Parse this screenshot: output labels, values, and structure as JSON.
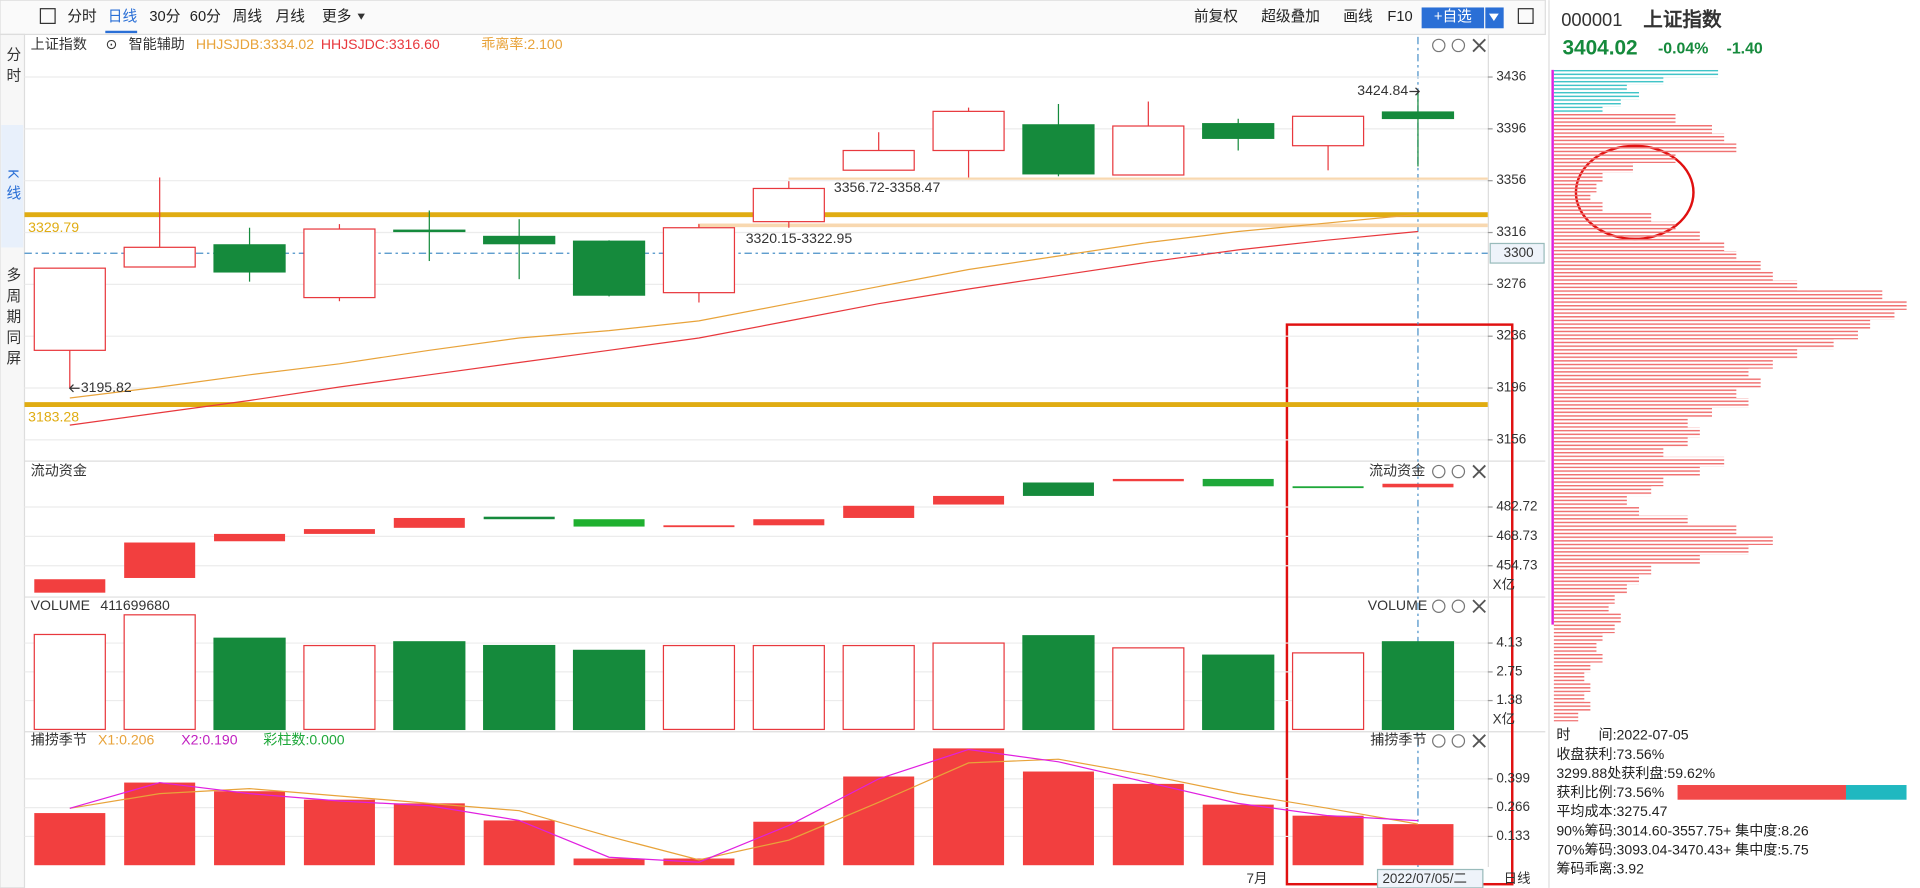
{
  "toolbar": {
    "left": [
      "分时",
      "日线",
      "30分",
      "60分",
      "周线",
      "月线",
      "更多"
    ],
    "right": [
      "前复权",
      "超级叠加",
      "画线",
      "F10",
      "+自选"
    ]
  },
  "sidebar": [
    "分时",
    "K线",
    "多周期同屏"
  ],
  "quote": {
    "code": "000001",
    "name": "上证指数",
    "price": 3404.02,
    "change_pct": "-0.04%",
    "change": "-1.40"
  },
  "chart_data": [
    {
      "type": "candlestick",
      "title": "上证指数",
      "assist": "智能辅助",
      "indicators": [
        "HHJSJDB:3334.02",
        "HHJSJDC:3316.60",
        "乖离率:2.100"
      ],
      "open": [
        3225.1,
        3289.4,
        3306.5,
        3265.8,
        3317.8,
        3313.0,
        3309.3,
        3269.6,
        3324.4,
        3364.1,
        3379.3,
        3399.1,
        3360.4,
        3400.0,
        3383.0,
        3409.0
      ],
      "high": [
        3288.5,
        3358.5,
        3319.7,
        3322.5,
        3333.0,
        3326.3,
        3310.0,
        3322.5,
        3355.6,
        3393.4,
        3412.4,
        3415.2,
        3417.1,
        3403.8,
        3405.7,
        3424.84
      ],
      "low": [
        3195.82,
        3289.4,
        3278.1,
        3263.0,
        3294.0,
        3280.0,
        3266.7,
        3262.0,
        3319.7,
        3364.1,
        3358.5,
        3359.4,
        3360.4,
        3379.3,
        3364.0,
        3367.0
      ],
      "close": [
        3288.5,
        3304.6,
        3285.6,
        3318.7,
        3316.8,
        3307.4,
        3267.7,
        3319.7,
        3350.0,
        3379.3,
        3409.5,
        3361.3,
        3398.2,
        3388.7,
        3405.7,
        3404.02
      ],
      "up_color": "#e8383d",
      "down_color": "#158a3c",
      "lines": [
        {
          "color": "#e8a33a",
          "values": [
            3188.3,
            3196.8,
            3206.2,
            3214.7,
            3225.1,
            3234.6,
            3240.3,
            3247.8,
            3261.1,
            3274.3,
            3287.5,
            3297.9,
            3308.3,
            3316.8,
            3323.4,
            3330.0
          ]
        },
        {
          "color": "#e8383d",
          "values": [
            3167.4,
            3176.9,
            3186.4,
            3196.8,
            3206.2,
            3215.7,
            3225.1,
            3234.6,
            3247.8,
            3261.1,
            3272.4,
            3282.8,
            3293.2,
            3302.6,
            3310.2,
            3316.8
          ]
        }
      ],
      "hlines": [
        {
          "value": 3329.79,
          "color": "#e0ac12"
        },
        {
          "value": 3183.28,
          "color": "#e0ac12"
        }
      ],
      "bands": [
        {
          "low": 3356.72,
          "high": 3358.47,
          "label": "3356.72-3358.47"
        },
        {
          "low": 3320.15,
          "high": 3322.95,
          "label": "3320.15-3322.95"
        }
      ],
      "crosshair": 3300,
      "ylim": [
        3141,
        3467
      ],
      "yticks": [
        3436,
        3396,
        3356,
        3316,
        3276,
        3236,
        3196,
        3156
      ],
      "grid": true
    },
    {
      "type": "floating-bar",
      "title": "流动资金",
      "unit": "X亿",
      "low": [
        441.9,
        448.9,
        466.4,
        469.9,
        472.8,
        476.9,
        473.4,
        473.4,
        474.0,
        477.5,
        483.9,
        488.0,
        495.0,
        492.6,
        492.1,
        492.1
      ],
      "high": [
        448.3,
        465.8,
        469.9,
        472.2,
        477.5,
        478.1,
        476.9,
        474.0,
        476.9,
        483.3,
        488.0,
        494.4,
        496.1,
        496.1,
        492.6,
        493.8
      ],
      "colors": [
        "#f23f3f",
        "#f23f3f",
        "#f23f3f",
        "#f23f3f",
        "#f23f3f",
        "#158a3c",
        "#1fb02f",
        "#f23f3f",
        "#f23f3f",
        "#f23f3f",
        "#f23f3f",
        "#158a3c",
        "#f23f3f",
        "#1fa83a",
        "#1fa83a",
        "#f23f3f"
      ],
      "ylim": [
        440.1,
        503.7
      ],
      "yticks": [
        482.72,
        468.73,
        454.73
      ],
      "grid": true
    },
    {
      "type": "bar",
      "title": "VOLUME",
      "current": 411699680,
      "unit": "X亿",
      "values": [
        4.54,
        5.48,
        4.36,
        4.01,
        4.19,
        4.01,
        3.78,
        4.01,
        4.01,
        4.01,
        4.13,
        4.48,
        3.9,
        3.55,
        3.66,
        4.19
      ],
      "colors": [
        "#e8383d",
        "#e8383d",
        "#158a3c",
        "#e8383d",
        "#158a3c",
        "#158a3c",
        "#158a3c",
        "#e8383d",
        "#e8383d",
        "#e8383d",
        "#e8383d",
        "#158a3c",
        "#e8383d",
        "#158a3c",
        "#e8383d",
        "#158a3c"
      ],
      "ylim": [
        0,
        6.3
      ],
      "yticks": [
        4.13,
        2.75,
        1.38
      ],
      "grid": true
    },
    {
      "type": "bar-line",
      "title": "捕捞季节",
      "indicators": [
        "X1:0.206",
        "X2:0.190",
        "彩柱数:0.000"
      ],
      "color": "#f23f3f",
      "values": [
        0.241,
        0.382,
        0.342,
        0.303,
        0.286,
        0.207,
        0.031,
        0.031,
        0.201,
        0.41,
        0.54,
        0.433,
        0.376,
        0.28,
        0.229,
        0.19
      ],
      "lines": [
        {
          "color": "#e8a33a",
          "values": [
            0.263,
            0.331,
            0.354,
            0.32,
            0.286,
            0.252,
            0.133,
            0.025,
            0.116,
            0.291,
            0.473,
            0.49,
            0.416,
            0.331,
            0.263,
            0.19
          ]
        },
        {
          "color": "#e020e0",
          "values": [
            0.263,
            0.382,
            0.331,
            0.297,
            0.275,
            0.207,
            0.037,
            0.014,
            0.184,
            0.399,
            0.535,
            0.478,
            0.382,
            0.286,
            0.229,
            0.206
          ]
        }
      ],
      "ylim": [
        0,
        0.614
      ],
      "yticks": [
        0.399,
        0.266,
        0.133
      ],
      "grid": true
    },
    {
      "type": "profile",
      "xlim": [
        0,
        300
      ],
      "series": [
        {
          "color": "#40c4c8",
          "values": [
            135,
            90,
            60,
            70,
            55,
            40
          ]
        },
        {
          "color": "#f07272",
          "values": [
            100,
            130,
            140,
            150,
            100,
            65,
            40,
            35,
            30,
            40,
            80,
            100,
            120,
            140,
            150,
            170,
            180,
            200,
            270,
            290,
            280,
            260,
            250,
            230,
            200,
            180,
            160,
            170,
            150,
            160,
            130,
            110,
            120,
            110,
            90,
            140,
            120,
            90,
            80,
            60,
            70,
            110,
            150,
            180,
            160,
            120,
            80,
            70,
            60,
            50,
            45,
            55,
            50,
            40,
            35,
            40,
            30,
            25,
            30,
            25,
            30,
            20
          ]
        }
      ]
    }
  ],
  "chip_info": [
    "时　　间:2022-07-05",
    "收盘获利:73.56%",
    "3299.88处获利盘:59.62%",
    "获利比例:73.56%",
    "平均成本:3275.47",
    "90%筹码:3014.60-3557.75+ 集中度:8.26",
    "70%筹码:3093.04-3470.43+ 集中度:5.75",
    "筹码乖离:3.92"
  ],
  "profit_ratio": 73.56,
  "x_axis": {
    "month": "7月",
    "date": "2022/07/05/二",
    "period": "日线"
  }
}
